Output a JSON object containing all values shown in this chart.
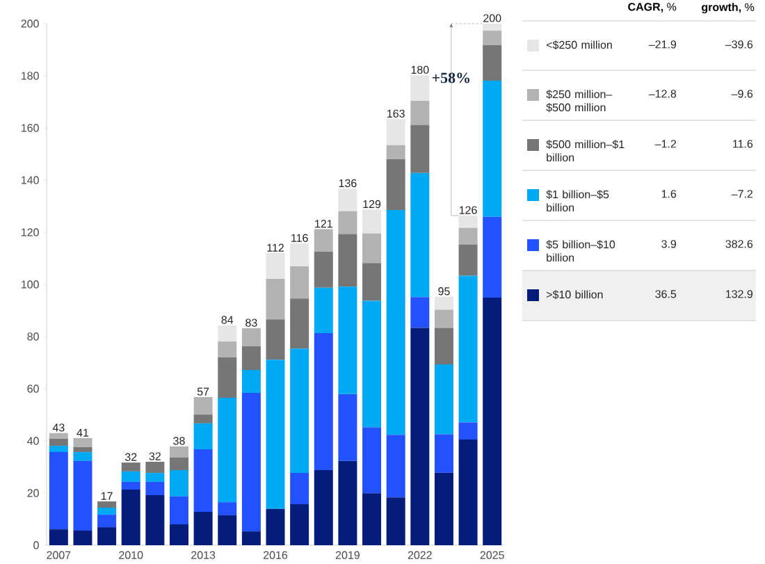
{
  "chart_data": {
    "type": "bar",
    "stacked": true,
    "categories": [
      "2007",
      null,
      null,
      "2010",
      null,
      null,
      "2013",
      null,
      null,
      "2016",
      null,
      null,
      "2019",
      null,
      null,
      "2022",
      null,
      null,
      "2025"
    ],
    "series": [
      {
        "name": ">$10 billion",
        "color": "#051c7a",
        "values": [
          6.1,
          5.6,
          6.9,
          21.3,
          19.2,
          8.0,
          12.8,
          11.5,
          5.3,
          13.9,
          15.7,
          28.8,
          32.3,
          19.9,
          18.3,
          83.3,
          27.8,
          40.5,
          94.9
        ]
      },
      {
        "name": "$5 billion–$10 billion",
        "color": "#2251ff",
        "values": [
          29.6,
          26.7,
          4.8,
          3.0,
          5.1,
          10.7,
          24.0,
          5.0,
          53.1,
          0,
          12.0,
          52.5,
          25.6,
          25.3,
          24.0,
          11.8,
          14.7,
          6.6,
          31.0
        ]
      },
      {
        "name": "$1 billion–$5 billion",
        "color": "#00a9f4",
        "values": [
          2.4,
          3.4,
          2.7,
          4.0,
          3.4,
          10.1,
          9.9,
          40.0,
          8.8,
          57.2,
          47.7,
          17.4,
          41.2,
          48.5,
          86.2,
          47.6,
          26.8,
          56.2,
          52.2
        ]
      },
      {
        "name": "$500 million–$1 billion",
        "color": "#767676",
        "values": [
          2.7,
          1.9,
          2.4,
          3.4,
          4.3,
          4.8,
          3.4,
          15.5,
          9.1,
          15.5,
          19.2,
          13.8,
          20.2,
          14.5,
          19.5,
          18.4,
          14.0,
          12.0,
          13.6
        ]
      },
      {
        "name": "$250 million–$500 million",
        "color": "#b3b3b3",
        "values": [
          2.2,
          3.5,
          0,
          0,
          0,
          4.3,
          6.7,
          6.1,
          6.9,
          15.5,
          12.3,
          8.7,
          8.8,
          11.3,
          5.4,
          9.3,
          7.0,
          6.4,
          5.6
        ]
      },
      {
        "name": "<$250 million",
        "color": "#e6e6e6",
        "values": [
          0,
          0,
          0,
          0,
          0,
          0,
          0,
          6.2,
          0,
          9.9,
          8.8,
          0,
          8.6,
          9.2,
          10.0,
          9.8,
          5.0,
          4.7,
          2.7
        ]
      }
    ],
    "totals": [
      "43",
      "41",
      "17",
      "32",
      "32",
      "38",
      "57",
      "84",
      "83",
      "112",
      "116",
      "121",
      "136",
      "129",
      "163",
      "180",
      "95",
      "126",
      "200"
    ],
    "ylim": [
      0,
      200
    ],
    "yticks": [
      0,
      20,
      40,
      60,
      80,
      100,
      120,
      140,
      160,
      180,
      200
    ],
    "legend": "right",
    "annotations": [
      "+58%",
      "**CAGR,** %",
      "**growth,** %",
      "–21.9",
      "–39.6",
      "–12.8",
      "–9.6",
      "–1.2",
      "11.6",
      "1.6",
      "–7.2",
      "3.9",
      "382.6",
      "36.5",
      "132.9"
    ]
  }
}
